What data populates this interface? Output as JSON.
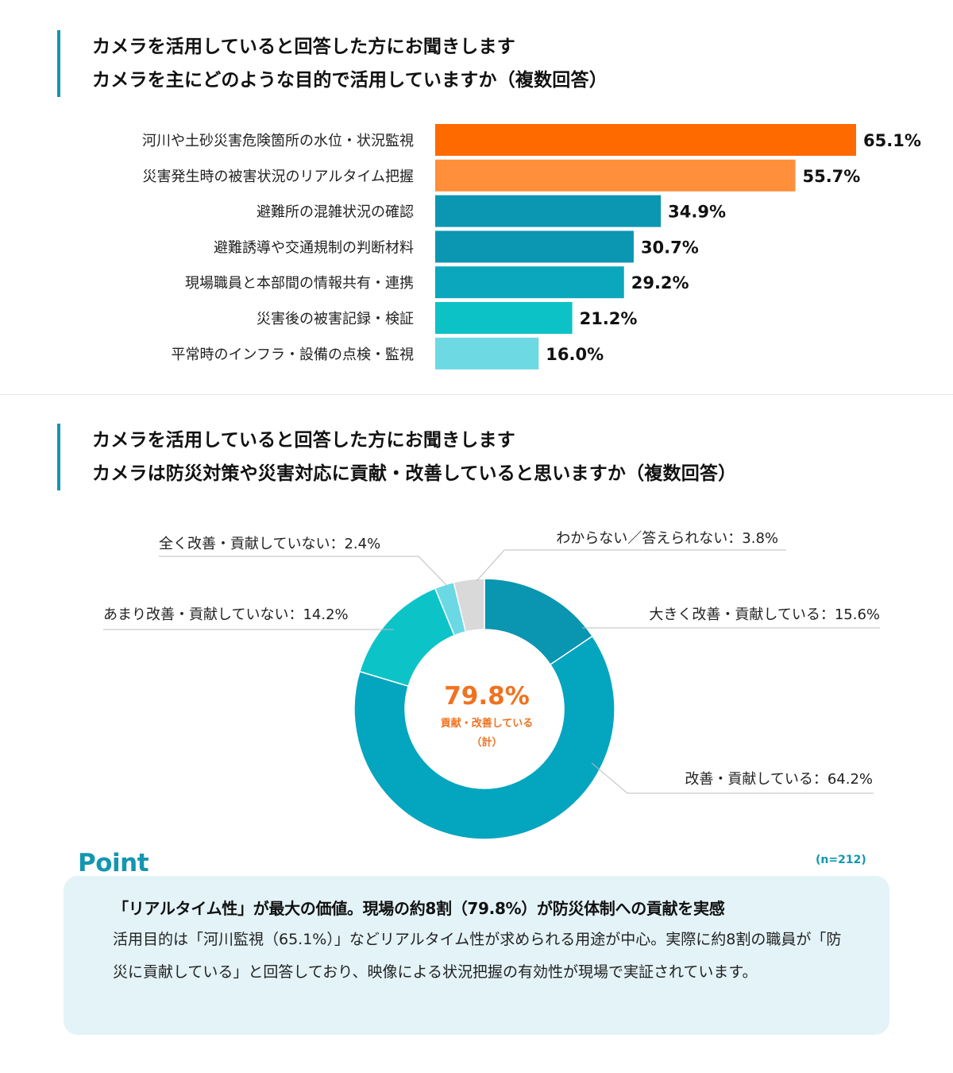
{
  "section1": {
    "question_line1": "カメラを活用していると回答した方にお聞きします",
    "question_line2": "カメラを主にどのような目的で活用していますか（複数回答）"
  },
  "section2": {
    "question_line1": "カメラを活用していると回答した方にお聞きします",
    "question_line2": "カメラは防災対策や災害対応に貢献・改善していると思いますか（複数回答）"
  },
  "colors": {
    "accent": "#1496b0",
    "orange": "#ff6a00",
    "orange_light": "#ff8f3a",
    "center_text": "#f07220"
  },
  "chart_data": [
    {
      "type": "bar",
      "orientation": "horizontal",
      "categories": [
        "河川や土砂災害危険箇所の水位・状況監視",
        "災害発生時の被害状況のリアルタイム把握",
        "避難所の混雑状況の確認",
        "避難誘導や交通規制の判断材料",
        "現場職員と本部間の情報共有・連携",
        "災害後の被害記録・検証",
        "平常時のインフラ・設備の点検・監視"
      ],
      "values": [
        65.1,
        55.7,
        34.9,
        30.7,
        29.2,
        21.2,
        16.0
      ],
      "value_labels": [
        "65.1%",
        "55.7%",
        "34.9%",
        "30.7%",
        "29.2%",
        "21.2%",
        "16.0%"
      ],
      "colors": [
        "#ff6a00",
        "#ff8f3a",
        "#0b96b2",
        "#0b96b2",
        "#0aa7bd",
        "#0cc2c6",
        "#6cd9e3"
      ],
      "xlim": [
        0,
        65.1
      ]
    },
    {
      "type": "pie",
      "style": "donut",
      "slices": [
        {
          "label": "大きく改善・貢献している：15.6%",
          "value": 15.6,
          "color": "#0a95b0"
        },
        {
          "label": "改善・貢献している：64.2%",
          "value": 64.2,
          "color": "#04a5bf"
        },
        {
          "label": "あまり改善・貢献していない：14.2%",
          "value": 14.2,
          "color": "#0cc3c8"
        },
        {
          "label": "全く改善・貢献していない：2.4%",
          "value": 2.4,
          "color": "#6bd9e3"
        },
        {
          "label": "わからない／答えられない：3.8%",
          "value": 3.8,
          "color": "#d9d9d9"
        }
      ],
      "center_value": "79.8%",
      "center_label_line1": "貢献・改善している",
      "center_label_line2": "（計）"
    }
  ],
  "point": {
    "title": "Point",
    "n": "(n=212)",
    "headline": "「リアルタイム性」が最大の価値。現場の約8割（79.8%）が防災体制への貢献を実感",
    "body": "活用目的は「河川監視（65.1%）」などリアルタイム性が求められる用途が中心。実際に約8割の職員が「防災に貢献している」と回答しており、映像による状況把握の有効性が現場で実証されています。"
  }
}
